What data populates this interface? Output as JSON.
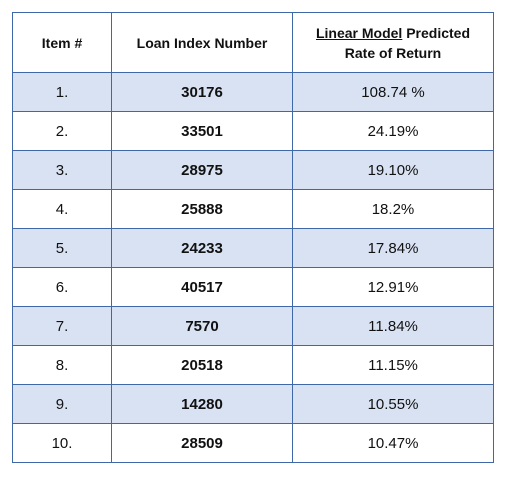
{
  "table": {
    "headers": {
      "item": "Item #",
      "loan": "Loan Index Number",
      "rate_underlined": "Linear Model",
      "rate_line1_rest": " Predicted",
      "rate_line2": "Rate of Return"
    },
    "rows": [
      {
        "item": "1.",
        "loan": "30176",
        "rate": "108.74 %"
      },
      {
        "item": "2.",
        "loan": "33501",
        "rate": "24.19%"
      },
      {
        "item": "3.",
        "loan": "28975",
        "rate": "19.10%"
      },
      {
        "item": "4.",
        "loan": "25888",
        "rate": "18.2%"
      },
      {
        "item": "5.",
        "loan": "24233",
        "rate": "17.84%"
      },
      {
        "item": "6.",
        "loan": "40517",
        "rate": "12.91%"
      },
      {
        "item": "7.",
        "loan": "7570",
        "rate": "11.84%"
      },
      {
        "item": "8.",
        "loan": "20518",
        "rate": "11.15%"
      },
      {
        "item": "9.",
        "loan": "14280",
        "rate": "10.55%"
      },
      {
        "item": "10.",
        "loan": "28509",
        "rate": "10.47%"
      }
    ],
    "colors": {
      "border": "#3f68a8",
      "shaded_row": "#d9e2f3"
    }
  }
}
